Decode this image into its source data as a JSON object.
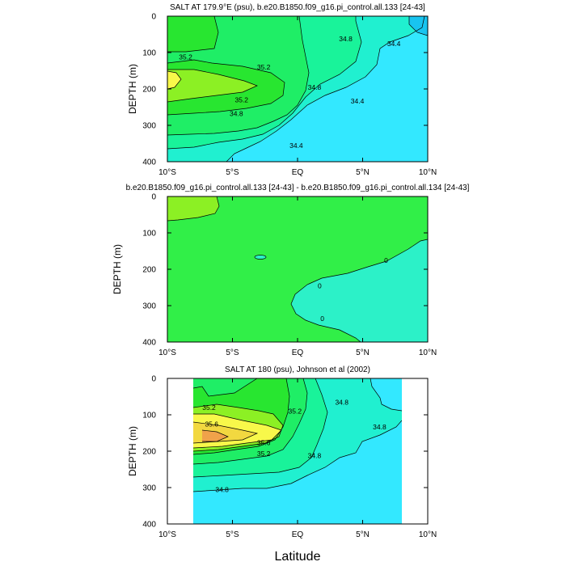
{
  "colors": {
    "cyan": "#33e8ff",
    "teal_light": "#20f0d0",
    "cyan_deep": "#18c4f0",
    "green_teal": "#19f39a",
    "green_mid": "#1fee66",
    "green": "#28e630",
    "lime": "#8cf024",
    "yellow_green": "#c8f22a",
    "yellow": "#f8f84a",
    "gold": "#f2d840",
    "orange": "#f0a24a",
    "diff_green": "#31ef48",
    "diff_teal": "#2cf1c8"
  },
  "xlabel": "Latitude",
  "chart_data": [
    {
      "type": "contour",
      "title": "SALT AT 179.9°E (psu), b.e20.B1850.f09_g16.pi_control.all.133 [24-43]",
      "ylabel": "DEPTH (m)",
      "xlim": [
        -10,
        10
      ],
      "ylim": [
        400,
        0
      ],
      "xticks": [
        -10,
        -5,
        0,
        5,
        10
      ],
      "xtick_labels": [
        "10°S",
        "5°S",
        "EQ",
        "5°N",
        "10°N"
      ],
      "yticks": [
        0,
        100,
        200,
        300,
        400
      ],
      "ytick_labels": [
        "0",
        "100",
        "200",
        "300",
        "400"
      ],
      "contour_labels": [
        {
          "text": "35.2",
          "x": -8.6,
          "y": 112
        },
        {
          "text": "35.2",
          "x": -2.6,
          "y": 140
        },
        {
          "text": "35.2",
          "x": -4.3,
          "y": 230
        },
        {
          "text": "34.8",
          "x": -4.7,
          "y": 268
        },
        {
          "text": "34.8",
          "x": 1.3,
          "y": 195
        },
        {
          "text": "34.8",
          "x": 3.7,
          "y": 62
        },
        {
          "text": "34.4",
          "x": 7.4,
          "y": 76
        },
        {
          "text": "34.4",
          "x": 4.6,
          "y": 233
        },
        {
          "text": "34.4",
          "x": -0.1,
          "y": 356
        }
      ]
    },
    {
      "type": "contour",
      "title": "b.e20.B1850.f09_g16.pi_control.all.133 [24-43] - b.e20.B1850.f09_g16.pi_control.all.134 [24-43]",
      "ylabel": "DEPTH (m)",
      "xlim": [
        -10,
        10
      ],
      "ylim": [
        400,
        0
      ],
      "xticks": [
        -10,
        -5,
        0,
        5,
        10
      ],
      "xtick_labels": [
        "10°S",
        "5°S",
        "EQ",
        "5°N",
        "10°N"
      ],
      "yticks": [
        0,
        100,
        200,
        300,
        400
      ],
      "ytick_labels": [
        "0",
        "100",
        "200",
        "300",
        "400"
      ],
      "contour_labels": [
        {
          "text": "0",
          "x": 6.8,
          "y": 175
        },
        {
          "text": "0",
          "x": 1.7,
          "y": 245
        },
        {
          "text": "0",
          "x": 1.9,
          "y": 336
        }
      ]
    },
    {
      "type": "contour",
      "title": "SALT AT 180 (psu), Johnson et al (2002)",
      "ylabel": "DEPTH (m)",
      "xlim": [
        -10,
        10
      ],
      "ylim": [
        400,
        0
      ],
      "data_x_range": [
        -8,
        8
      ],
      "xticks": [
        -10,
        -5,
        0,
        5,
        10
      ],
      "xtick_labels": [
        "10°S",
        "5°S",
        "EQ",
        "5°N",
        "10°N"
      ],
      "yticks": [
        0,
        100,
        200,
        300,
        400
      ],
      "ytick_labels": [
        "0",
        "100",
        "200",
        "300",
        "400"
      ],
      "contour_labels": [
        {
          "text": "35.2",
          "x": -6.8,
          "y": 80
        },
        {
          "text": "35.6",
          "x": -6.6,
          "y": 125
        },
        {
          "text": "35.6",
          "x": -2.6,
          "y": 177
        },
        {
          "text": "35.2",
          "x": -2.6,
          "y": 207
        },
        {
          "text": "35.2",
          "x": -0.2,
          "y": 90
        },
        {
          "text": "34.8",
          "x": 3.4,
          "y": 65
        },
        {
          "text": "34.8",
          "x": 6.3,
          "y": 133
        },
        {
          "text": "34.8",
          "x": 1.3,
          "y": 212
        },
        {
          "text": "34.8",
          "x": -5.8,
          "y": 305
        }
      ]
    }
  ]
}
